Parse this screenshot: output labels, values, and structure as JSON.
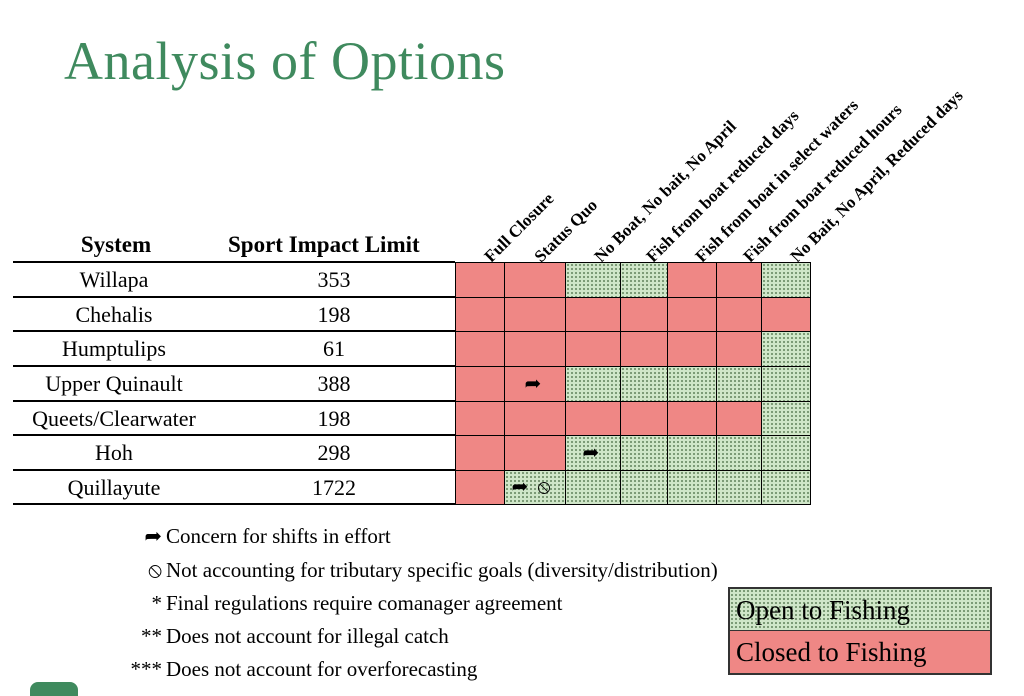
{
  "title": "Analysis of Options",
  "table": {
    "headers": {
      "system": "System",
      "limit": "Sport Impact Limit"
    },
    "columns": [
      "Full Closure",
      "Status Quo",
      "No Boat, No bait, No April",
      "Fish from boat reduced days",
      "Fish from boat in select waters",
      "Fish from boat reduced hours",
      "No Bait, No April, Reduced days"
    ],
    "rows": [
      {
        "system": "Willapa",
        "limit": "353",
        "cells": [
          "closed",
          "closed",
          "open",
          "open",
          "closed",
          "closed",
          "open"
        ]
      },
      {
        "system": "Chehalis",
        "limit": "198",
        "cells": [
          "closed",
          "closed",
          "closed",
          "closed",
          "closed",
          "closed",
          "closed"
        ]
      },
      {
        "system": "Humptulips",
        "limit": "61",
        "cells": [
          "closed",
          "closed",
          "closed",
          "closed",
          "closed",
          "closed",
          "open"
        ]
      },
      {
        "system": "Upper Quinault",
        "limit": "388",
        "cells": [
          "closed",
          "closed",
          "open",
          "open",
          "open",
          "open",
          "open"
        ]
      },
      {
        "system": "Queets/Clearwater",
        "limit": "198",
        "cells": [
          "closed",
          "closed",
          "closed",
          "closed",
          "closed",
          "closed",
          "open"
        ]
      },
      {
        "system": "Hoh",
        "limit": "298",
        "cells": [
          "closed",
          "closed",
          "open",
          "open",
          "open",
          "open",
          "open"
        ]
      },
      {
        "system": "Quillayute",
        "limit": "1722",
        "cells": [
          "closed",
          "open",
          "open",
          "open",
          "open",
          "open",
          "open"
        ]
      }
    ],
    "icons": [
      {
        "row": 3,
        "col": 1,
        "icon": "shift-arrow-icon"
      },
      {
        "row": 5,
        "col": 2,
        "icon": "shift-arrow-icon"
      },
      {
        "row": 6,
        "col": 1,
        "icon": "shift-arrow-icon"
      },
      {
        "row": 6,
        "col": 1,
        "icon": "no-tributary-icon"
      }
    ]
  },
  "notes": [
    {
      "symbol": "shift-arrow-icon",
      "text": "Concern for shifts in effort"
    },
    {
      "symbol": "no-tributary-icon",
      "text": "Not accounting for tributary specific goals (diversity/distribution)"
    },
    {
      "symbol": "*",
      "text": "Final regulations require comanager agreement"
    },
    {
      "symbol": "**",
      "text": "Does not account for illegal catch"
    },
    {
      "symbol": "***",
      "text": "Does not account for overforecasting"
    }
  ],
  "key": {
    "open": "Open to Fishing",
    "closed": "Closed to Fishing"
  },
  "colors": {
    "title": "#3f8a5e",
    "closed": "#ef8785",
    "open": "#cfe6c8"
  }
}
